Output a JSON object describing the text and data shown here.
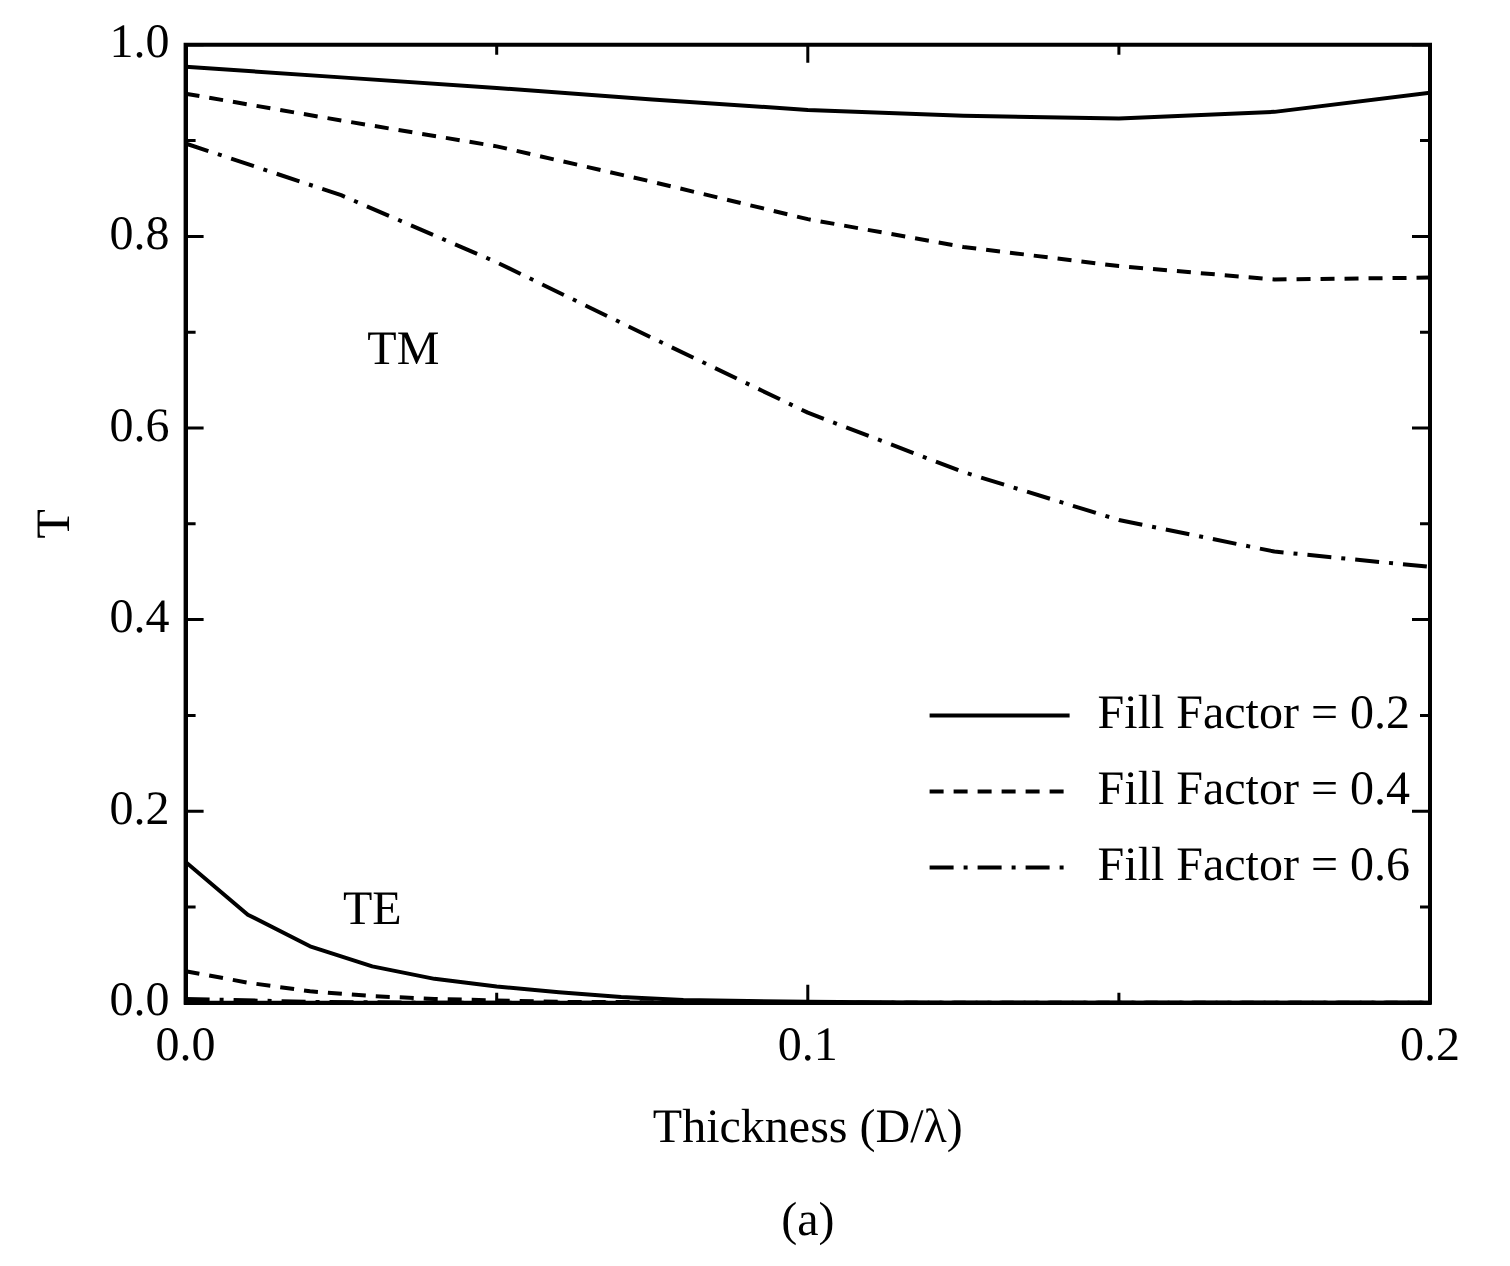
{
  "chart_data": {
    "type": "line",
    "xlabel": "Thickness (D/λ)",
    "ylabel": "T",
    "xlim": [
      0,
      0.2
    ],
    "xticks": [
      {
        "value": 0,
        "label": "0.0"
      },
      {
        "value": 0.05,
        "label": null
      },
      {
        "value": 0.1,
        "label": "0.1"
      },
      {
        "value": 0.15,
        "label": null
      },
      {
        "value": 0.2,
        "label": "0.2"
      }
    ],
    "ylim": [
      0,
      1
    ],
    "yticks": [
      {
        "value": 0,
        "label": "0.0"
      },
      {
        "value": 0.1,
        "label": null
      },
      {
        "value": 0.2,
        "label": "0.2"
      },
      {
        "value": 0.3,
        "label": null
      },
      {
        "value": 0.4,
        "label": "0.4"
      },
      {
        "value": 0.5,
        "label": null
      },
      {
        "value": 0.6,
        "label": "0.6"
      },
      {
        "value": 0.7,
        "label": null
      },
      {
        "value": 0.8,
        "label": "0.8"
      },
      {
        "value": 0.9,
        "label": null
      },
      {
        "value": 1,
        "label": "1.0"
      }
    ],
    "grid": false,
    "legend": "right",
    "marker": "none",
    "annotations": [
      "TM",
      "TE",
      "(a)"
    ],
    "series": [
      {
        "name": "Fill Factor = 0.2",
        "color": "#000000",
        "line_style": "solid",
        "x": [
          0,
          0.025,
          0.05,
          0.075,
          0.1,
          0.125,
          0.15,
          0.175,
          0.2
        ],
        "values": [
          0.977,
          0.966,
          0.955,
          0.943,
          0.932,
          0.926,
          0.923,
          0.93,
          0.95
        ]
      },
      {
        "name": "Fill Factor = 0.4",
        "color": "#000000",
        "line_style": "dashed",
        "x": [
          0,
          0.025,
          0.05,
          0.075,
          0.1,
          0.125,
          0.15,
          0.175,
          0.2
        ],
        "values": [
          0.949,
          0.921,
          0.894,
          0.857,
          0.818,
          0.789,
          0.769,
          0.755,
          0.757
        ]
      },
      {
        "name": "Fill Factor = 0.6",
        "color": "#000000",
        "line_style": "dashdot",
        "x": [
          0,
          0.025,
          0.05,
          0.075,
          0.1,
          0.125,
          0.15,
          0.175,
          0.2
        ],
        "values": [
          0.897,
          0.843,
          0.773,
          0.694,
          0.616,
          0.554,
          0.504,
          0.471,
          0.455
        ]
      },
      {
        "color": "#000000",
        "line_style": "solid",
        "x": [
          0,
          0.01,
          0.02,
          0.03,
          0.04,
          0.05,
          0.06,
          0.07,
          0.08,
          0.1,
          0.12,
          0.2
        ],
        "values": [
          0.147,
          0.092,
          0.059,
          0.038,
          0.025,
          0.017,
          0.011,
          0.006,
          0.003,
          0.001,
          0,
          0
        ]
      },
      {
        "color": "#000000",
        "line_style": "dashed",
        "x": [
          0,
          0.01,
          0.02,
          0.03,
          0.04,
          0.06,
          0.1,
          0.2
        ],
        "values": [
          0.033,
          0.021,
          0.012,
          0.007,
          0.004,
          0.001,
          0,
          0
        ]
      },
      {
        "color": "#000000",
        "line_style": "dashdot",
        "x": [
          0,
          0.02,
          0.04,
          0.2
        ],
        "values": [
          0.004,
          0.001,
          0,
          0
        ]
      }
    ]
  }
}
